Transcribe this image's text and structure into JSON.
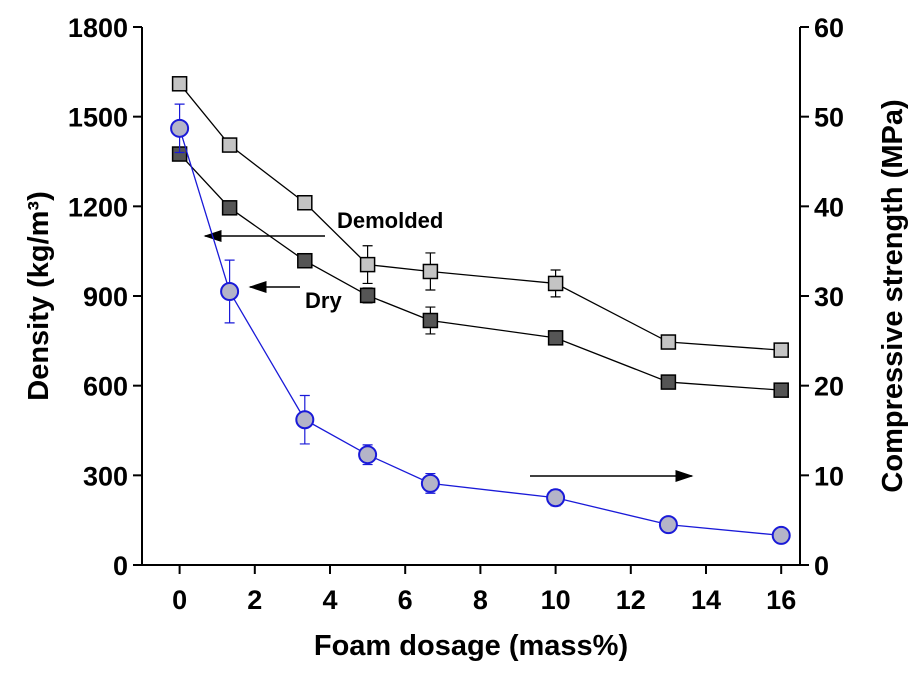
{
  "chart_data": {
    "type": "line",
    "x_label": "Foam dosage (mass%)",
    "y_label": "Density (kg/m³)",
    "y2_label": "Compressive strength (MPa)",
    "annotations": [
      "Demolded",
      "Dry"
    ],
    "x": [
      0,
      1.33,
      3.33,
      5,
      6.67,
      10,
      13,
      16
    ],
    "xlim": [
      -1,
      16.5
    ],
    "xticks": [
      0,
      2,
      4,
      6,
      8,
      10,
      12,
      14,
      16
    ],
    "ylim": [
      0,
      1800
    ],
    "yticks": [
      0,
      300,
      600,
      900,
      1200,
      1500,
      1800
    ],
    "y2lim": [
      0,
      60
    ],
    "y2ticks": [
      0,
      10,
      20,
      30,
      40,
      50,
      60
    ],
    "series": [
      {
        "color": "#c4c4c4",
        "marker": "square",
        "values": [
          1610,
          1405,
          1212,
          1005,
          982,
          942,
          746,
          719
        ],
        "errors": [
          0,
          0,
          0,
          63,
          62,
          45,
          0,
          0
        ]
      },
      {
        "color": "#555555",
        "marker": "square",
        "values": [
          1375,
          1195,
          1018,
          902,
          818,
          760,
          612,
          585
        ],
        "errors": [
          0,
          0,
          0,
          25,
          45,
          0,
          0,
          0
        ]
      },
      {
        "color": "#1a1ad8",
        "marker": "circle",
        "axis": "y2",
        "values": [
          48.7,
          30.5,
          16.2,
          12.3,
          9.1,
          7.5,
          4.5,
          3.3
        ],
        "errors": [
          2.7,
          3.5,
          2.7,
          1.1,
          1.1,
          0.9,
          0,
          0
        ]
      }
    ]
  }
}
